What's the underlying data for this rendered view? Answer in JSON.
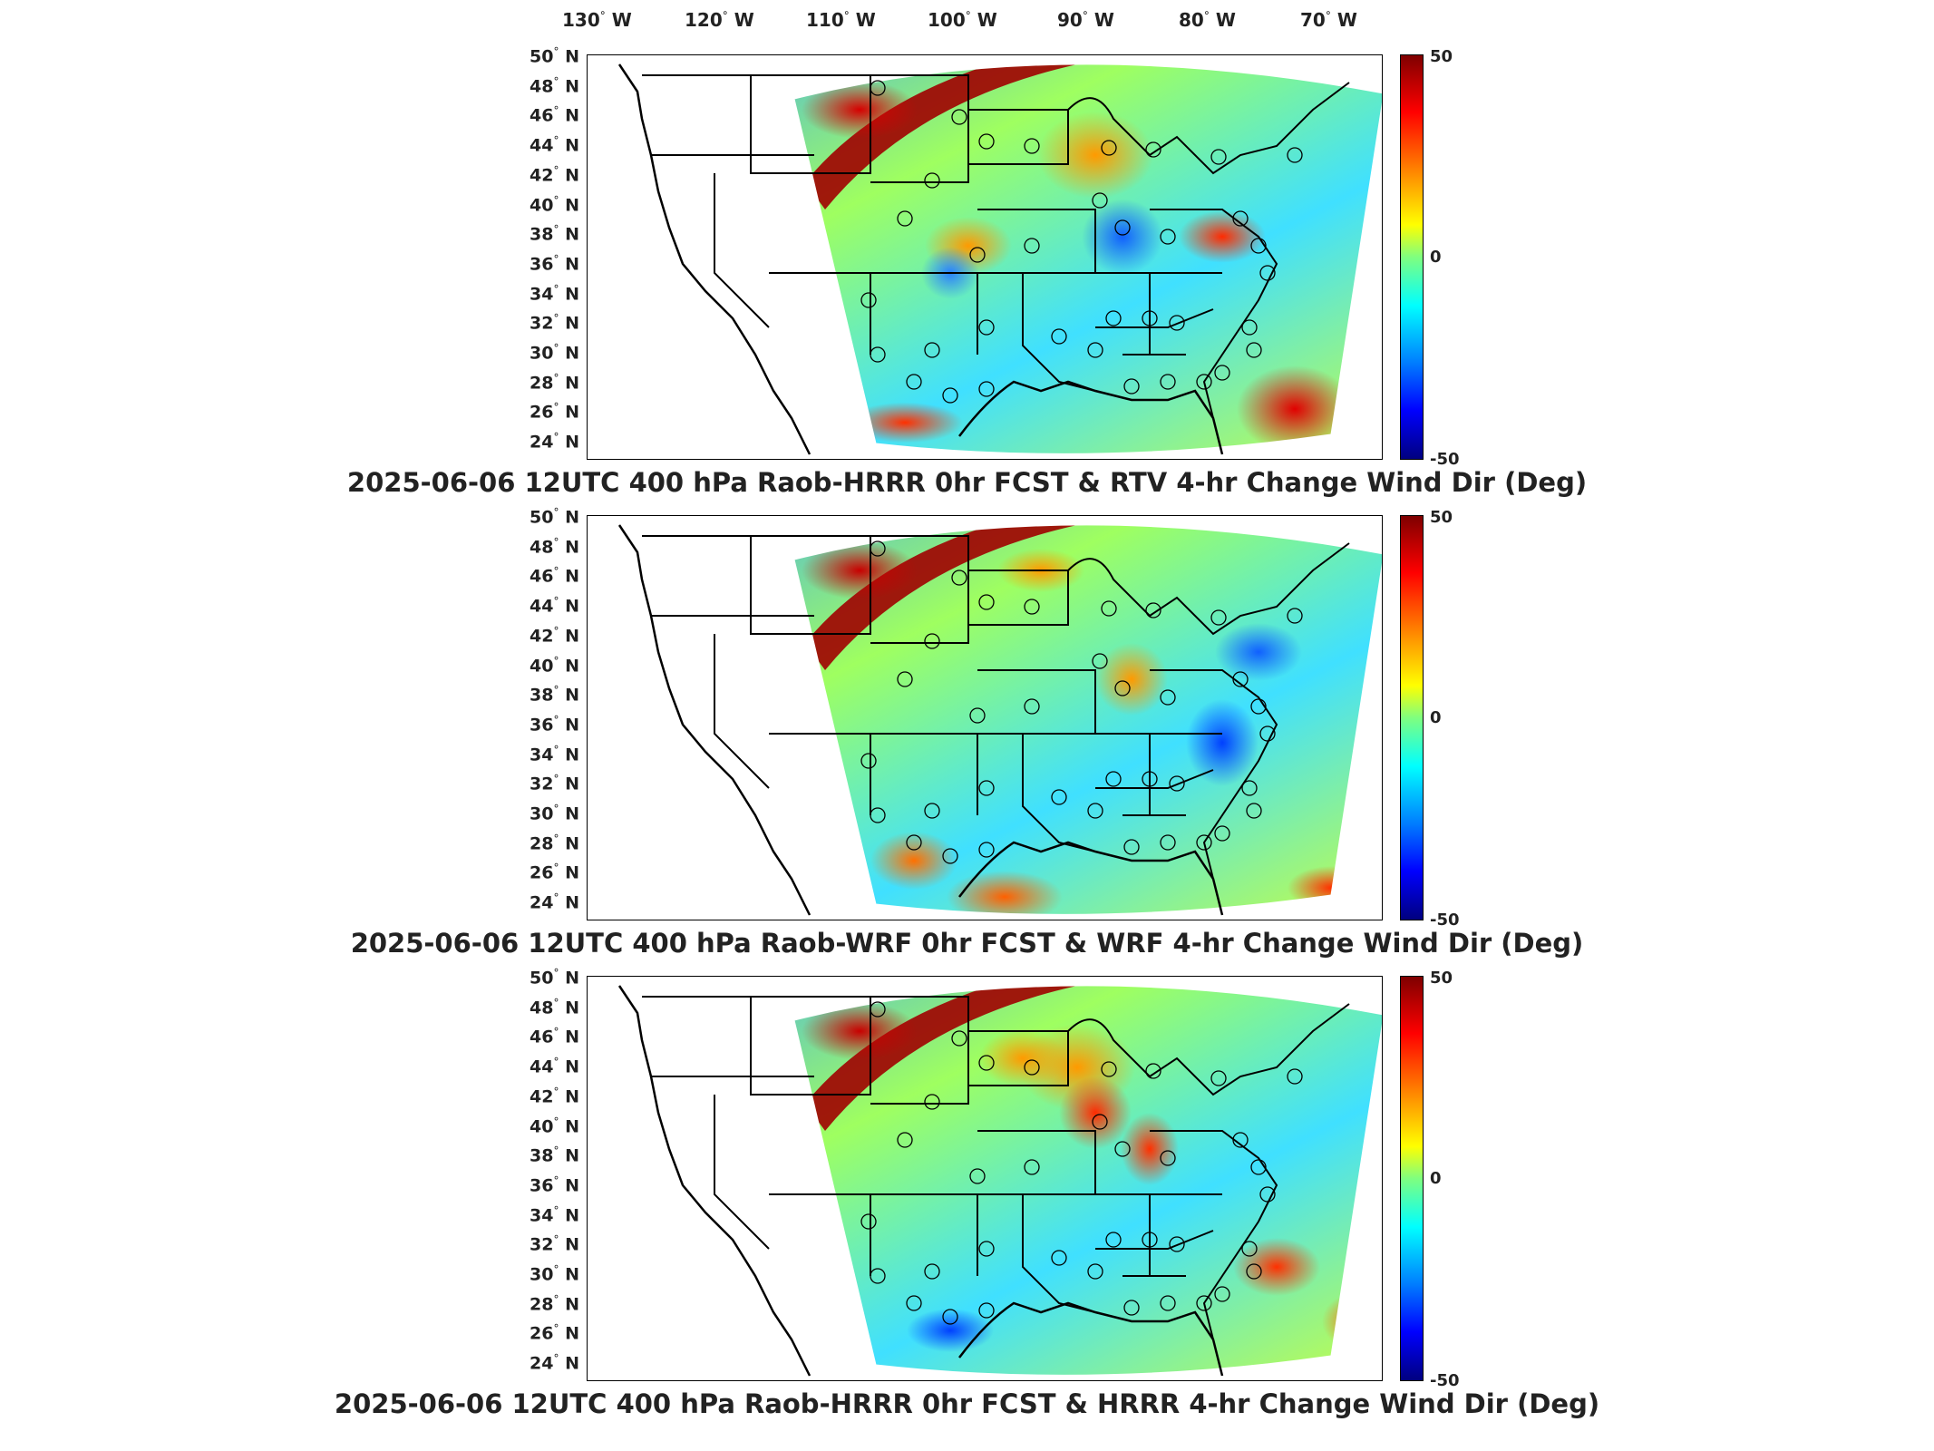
{
  "longitude_labels": [
    {
      "value": "130",
      "suffix": "W"
    },
    {
      "value": "120",
      "suffix": "W"
    },
    {
      "value": "110",
      "suffix": "W"
    },
    {
      "value": "100",
      "suffix": "W"
    },
    {
      "value": "90",
      "suffix": "W"
    },
    {
      "value": "80",
      "suffix": "W"
    },
    {
      "value": "70",
      "suffix": "W"
    }
  ],
  "latitude_labels": [
    {
      "value": "50",
      "suffix": "N"
    },
    {
      "value": "48",
      "suffix": "N"
    },
    {
      "value": "46",
      "suffix": "N"
    },
    {
      "value": "44",
      "suffix": "N"
    },
    {
      "value": "42",
      "suffix": "N"
    },
    {
      "value": "40",
      "suffix": "N"
    },
    {
      "value": "38",
      "suffix": "N"
    },
    {
      "value": "36",
      "suffix": "N"
    },
    {
      "value": "34",
      "suffix": "N"
    },
    {
      "value": "32",
      "suffix": "N"
    },
    {
      "value": "30",
      "suffix": "N"
    },
    {
      "value": "28",
      "suffix": "N"
    },
    {
      "value": "26",
      "suffix": "N"
    },
    {
      "value": "24",
      "suffix": "N"
    }
  ],
  "colorbar": {
    "max": "50",
    "mid": "0",
    "min": "-50",
    "colormap": "jet"
  },
  "panels": [
    {
      "title": "2025-06-06 12UTC 400 hPa Raob-HRRR 0hr FCST & RTV 4-hr Change Wind Dir (Deg)"
    },
    {
      "title": "2025-06-06 12UTC 400 hPa Raob-WRF 0hr FCST & WRF 4-hr Change Wind Dir (Deg)"
    },
    {
      "title": "2025-06-06 12UTC 400 hPa Raob-HRRR 0hr FCST & HRRR 4-hr Change Wind Dir (Deg)"
    }
  ]
}
